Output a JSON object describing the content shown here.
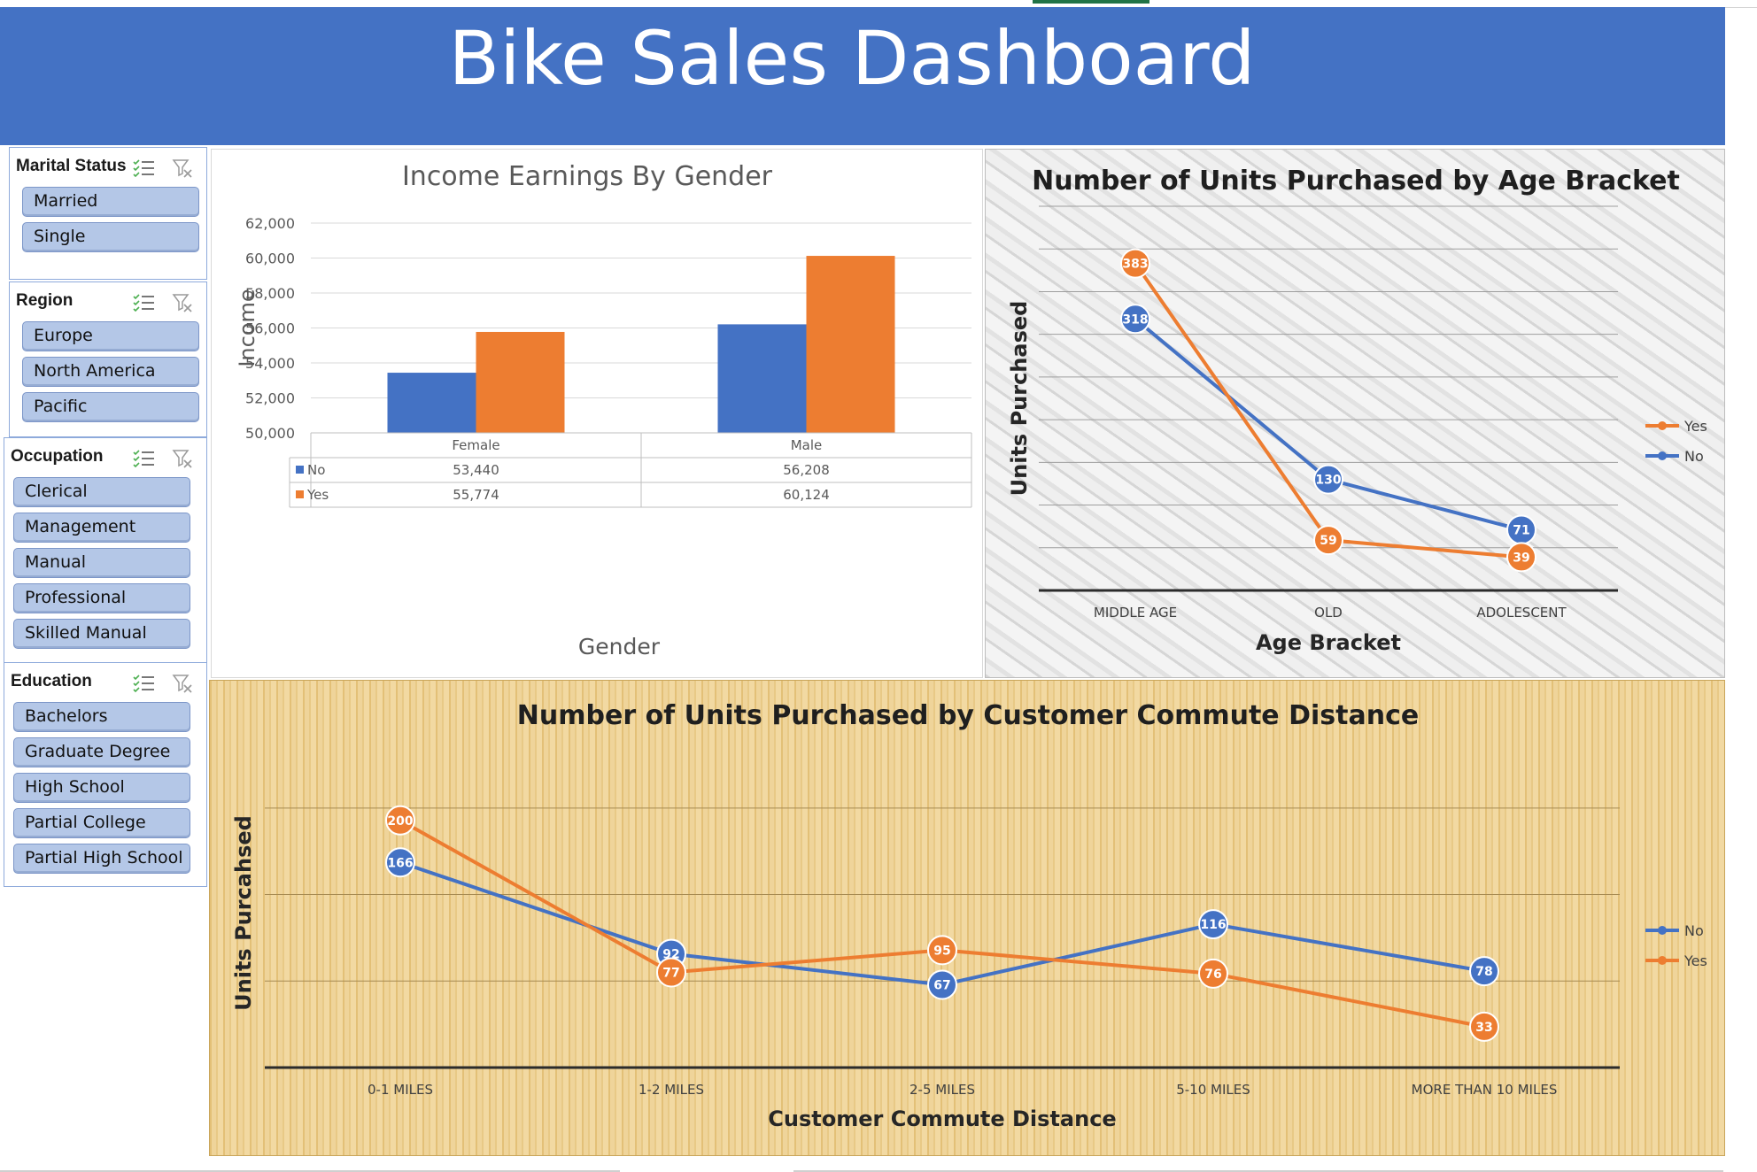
{
  "dashboard": {
    "title": "Bike Sales Dashboard"
  },
  "slicers": [
    {
      "title": "Marital Status",
      "items": [
        "Married",
        "Single"
      ]
    },
    {
      "title": "Region",
      "items": [
        "Europe",
        "North America",
        "Pacific"
      ]
    },
    {
      "title": "Occupation",
      "items": [
        "Clerical",
        "Management",
        "Manual",
        "Professional",
        "Skilled Manual"
      ]
    },
    {
      "title": "Education",
      "items": [
        "Bachelors",
        "Graduate Degree",
        "High School",
        "Partial College",
        "Partial High School"
      ]
    }
  ],
  "colors": {
    "no": "#4472c4",
    "yes": "#ed7d31",
    "header": "#4472c4",
    "slicer_item": "#b4c7e7"
  },
  "icons": {
    "multi_select": "multi-select-icon",
    "clear_filter": "clear-filter-icon"
  },
  "chart_data": [
    {
      "type": "bar",
      "title": "Income Earnings By Gender",
      "xlabel": "Gender",
      "ylabel": "Income",
      "categories": [
        "Female",
        "Male"
      ],
      "series": [
        {
          "name": "No",
          "values": [
            53440,
            56208
          ],
          "labels": [
            "53,440",
            "56,208"
          ]
        },
        {
          "name": "Yes",
          "values": [
            55774,
            60124
          ],
          "labels": [
            "55,774",
            "60,124"
          ]
        }
      ],
      "ylim": [
        50000,
        62000
      ],
      "yticks": [
        "50,000",
        "52,000",
        "54,000",
        "56,000",
        "58,000",
        "60,000",
        "62,000"
      ],
      "data_table": true,
      "grid": true
    },
    {
      "type": "line",
      "title": "Number of Units Purchased by Age Bracket",
      "xlabel": "Age Bracket",
      "ylabel": "Units Purchased",
      "categories": [
        "MIDDLE AGE",
        "OLD",
        "ADOLESCENT"
      ],
      "series": [
        {
          "name": "Yes",
          "values": [
            383,
            59,
            39
          ]
        },
        {
          "name": "No",
          "values": [
            318,
            130,
            71
          ]
        }
      ],
      "ylim": [
        0,
        450
      ],
      "grid": true,
      "legend": "right"
    },
    {
      "type": "line",
      "title": "Number of Units Purchased by Customer Commute Distance",
      "xlabel": "Customer Commute Distance",
      "ylabel": "Units Purcahsed",
      "categories": [
        "0-1 MILES",
        "1-2 MILES",
        "2-5 MILES",
        "5-10 MILES",
        "MORE THAN 10 MILES"
      ],
      "series": [
        {
          "name": "No",
          "values": [
            166,
            92,
            67,
            116,
            78
          ]
        },
        {
          "name": "Yes",
          "values": [
            200,
            77,
            95,
            76,
            33
          ]
        }
      ],
      "ylim": [
        0,
        250
      ],
      "grid": true,
      "legend": "right"
    }
  ]
}
